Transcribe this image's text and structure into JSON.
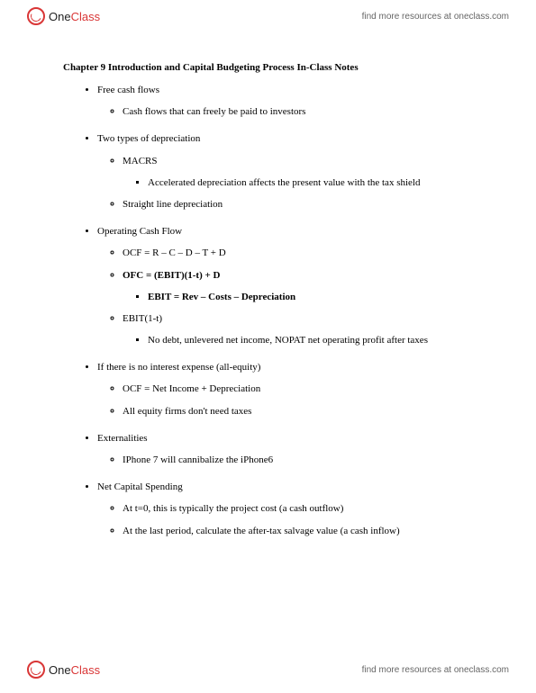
{
  "brand": {
    "first": "One",
    "second": "Class"
  },
  "header_link": "find more resources at oneclass.com",
  "footer_link": "find more resources at oneclass.com",
  "title": "Chapter 9 Introduction and Capital Budgeting Process In-Class Notes",
  "b1": {
    "h": "Free cash flows",
    "s1": "Cash flows that can freely be paid to investors"
  },
  "b2": {
    "h": "Two types of depreciation",
    "s1": "MACRS",
    "s1a": "Accelerated depreciation affects the present value with the tax shield",
    "s2": "Straight line depreciation"
  },
  "b3": {
    "h": "Operating Cash Flow",
    "s1": "OCF = R – C – D – T + D",
    "s2": "OFC = (EBIT)(1-t) + D",
    "s2a": "EBIT = Rev – Costs – Depreciation",
    "s3": "EBIT(1-t)",
    "s3a": "No debt, unlevered net income, NOPAT net operating profit after taxes"
  },
  "b4": {
    "h": "If there is no interest expense (all-equity)",
    "s1": "OCF = Net Income + Depreciation",
    "s2": "All equity firms don't need taxes"
  },
  "b5": {
    "h": "Externalities",
    "s1": "IPhone 7 will cannibalize the iPhone6"
  },
  "b6": {
    "h": "Net Capital Spending",
    "s1": "At t=0, this is typically the project cost (a cash outflow)",
    "s2": "At the last period, calculate the after-tax salvage value (a cash inflow)"
  }
}
